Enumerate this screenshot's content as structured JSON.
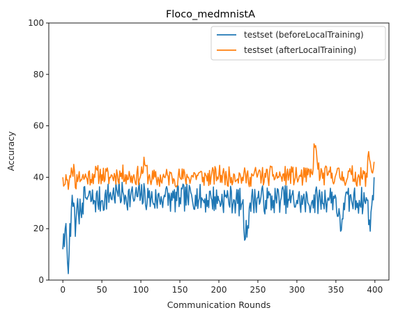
{
  "chart_data": {
    "type": "line",
    "title": "Floco_medmnistA",
    "xlabel": "Communication Rounds",
    "ylabel": "Accuracy",
    "xlim": [
      -18,
      418
    ],
    "ylim": [
      0,
      100
    ],
    "xticks": [
      0,
      50,
      100,
      150,
      200,
      250,
      300,
      350,
      400
    ],
    "yticks": [
      0,
      20,
      40,
      60,
      80,
      100
    ],
    "grid": false,
    "legend_position": "upper right",
    "series": [
      {
        "name": "testset (beforeLocalTraining)",
        "color": "#1f77b4",
        "rounds": 400,
        "anchors_x": [
          0,
          1,
          2,
          3,
          4,
          5,
          6,
          7,
          8,
          9,
          10,
          11,
          12,
          14,
          16,
          18,
          20,
          25,
          30,
          40,
          50,
          60,
          70,
          80,
          90,
          100,
          110,
          120,
          130,
          140,
          150,
          160,
          170,
          180,
          190,
          200,
          210,
          220,
          230,
          234,
          240,
          250,
          260,
          270,
          280,
          290,
          300,
          310,
          320,
          330,
          340,
          350,
          356,
          360,
          370,
          380,
          390,
          394,
          396,
          399
        ],
        "anchors_y": [
          12,
          18,
          13,
          20,
          22,
          15,
          7,
          2.5,
          10,
          22,
          17,
          28,
          33,
          30,
          17,
          28,
          26,
          30,
          32,
          31,
          31,
          33,
          34,
          33,
          32,
          33,
          32,
          31,
          33,
          31,
          32,
          32,
          33,
          31,
          32,
          31,
          32,
          31,
          30,
          16,
          30,
          32,
          31,
          31,
          32,
          31,
          31,
          30,
          31,
          31,
          32,
          32,
          19,
          30,
          31,
          31,
          31,
          19,
          29,
          40
        ],
        "noise": 5.5,
        "seed": 7
      },
      {
        "name": "testset (afterLocalTraining)",
        "color": "#ff7f0e",
        "rounds": 400,
        "anchors_x": [
          0,
          2,
          4,
          6,
          8,
          10,
          12,
          14,
          16,
          18,
          20,
          30,
          40,
          50,
          60,
          70,
          80,
          90,
          100,
          105,
          110,
          120,
          130,
          140,
          150,
          160,
          170,
          180,
          190,
          200,
          210,
          220,
          230,
          240,
          250,
          260,
          270,
          280,
          290,
          300,
          310,
          320,
          322,
          330,
          340,
          350,
          360,
          370,
          380,
          390,
          392,
          396,
          399
        ],
        "anchors_y": [
          40,
          37,
          41,
          39,
          38,
          40,
          42,
          45,
          36,
          41,
          40,
          40,
          41,
          41,
          40,
          41,
          41,
          40,
          41,
          45,
          40,
          39,
          40,
          40,
          40,
          40,
          41,
          40,
          40,
          41,
          40,
          41,
          40,
          40,
          41,
          40,
          41,
          40,
          41,
          40,
          40,
          41,
          53,
          40,
          41,
          41,
          40,
          41,
          40,
          40,
          50,
          42,
          46
        ],
        "noise": 3.8,
        "seed": 11
      }
    ]
  }
}
